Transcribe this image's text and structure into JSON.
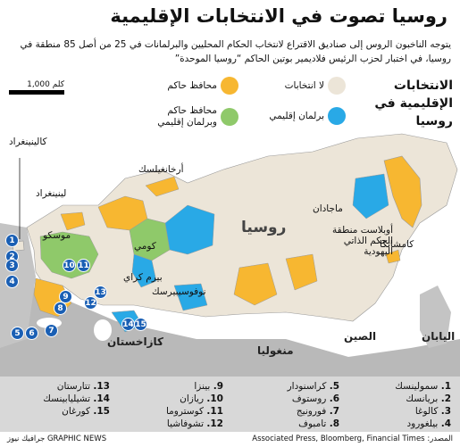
{
  "header": {
    "title": "روسيا تصوت في الانتخابات الإقليمية",
    "subtitle": "يتوجه الناخبون الروس إلى صناديق الاقتراع لانتخاب الحكام المحليين والبرلمانات في 25 من أصل 85 منطقة في روسيا، في اختبار لحزب الرئيس فلاديمير بوتين الحاكم “روسيا الموحدة”"
  },
  "legend": {
    "heading": "الانتخابات الإقليمية في روسيا",
    "items": [
      {
        "label": "لا انتخابات",
        "color": "#ece5d8"
      },
      {
        "label": "محافظ حاكم",
        "color": "#f7b731"
      },
      {
        "label": "برلمان إقليمي",
        "color": "#29a9e6"
      },
      {
        "label": "محافظ حاكم وبرلمان إقليمي",
        "color": "#8fc96a"
      }
    ],
    "scale_label": "1,000 كلم"
  },
  "map_labels": {
    "russia": "روسيا",
    "kazakhstan": "كازاخستان",
    "mongolia": "منغوليا",
    "china": "الصين",
    "japan": "اليابان",
    "kaliningrad": "كالينينغراد",
    "leningrad": "لينينغراد",
    "moscow": "موسكو",
    "komi": "كومي",
    "arkhangelsk": "أرخانغيلسك",
    "perm": "بيرم كراي",
    "novosibirsk": "نوفوسيبيرسك",
    "magadan": "ماجادان",
    "jewish_ao": "أوبلاست منطقة الحكم الذاتي اليهودية",
    "kamchatka": "كامشاتكا"
  },
  "markers": [
    "1",
    "2",
    "3",
    "4",
    "5",
    "6",
    "7",
    "8",
    "9",
    "10",
    "11",
    "12",
    "13",
    "14",
    "15"
  ],
  "regions": [
    {
      "num": "1.",
      "name": "سمولينسك"
    },
    {
      "num": "2.",
      "name": "بريانسك"
    },
    {
      "num": "3.",
      "name": "كالوغا"
    },
    {
      "num": "4.",
      "name": "بيلغورود"
    },
    {
      "num": "5.",
      "name": "كراسنودار"
    },
    {
      "num": "6.",
      "name": "روستوف"
    },
    {
      "num": "7.",
      "name": "فورونيج"
    },
    {
      "num": "8.",
      "name": "تامبوف"
    },
    {
      "num": "9.",
      "name": "بينزا"
    },
    {
      "num": "10.",
      "name": "ريازان"
    },
    {
      "num": "11.",
      "name": "كوستروما"
    },
    {
      "num": "12.",
      "name": "تشوفاشيا"
    },
    {
      "num": "13.",
      "name": "تتارستان"
    },
    {
      "num": "14.",
      "name": "تشيليابينسك"
    },
    {
      "num": "15.",
      "name": "كورغان"
    }
  ],
  "footer": {
    "source": "المصدر: Associated Press, Bloomberg, Financial Times",
    "credit": "GRAPHIC NEWS جرافيك نيوز"
  }
}
